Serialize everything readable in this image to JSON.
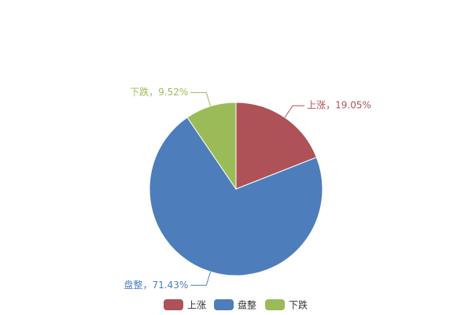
{
  "chart_data": {
    "type": "pie",
    "categories": [
      "上涨",
      "盘整",
      "下跌"
    ],
    "values": [
      19.05,
      71.43,
      9.52
    ],
    "value_labels": [
      "上涨，19.05%",
      "盘整，71.43%",
      "下跌，9.52%"
    ],
    "colors": [
      "#ae5257",
      "#4d7ebb",
      "#9bbb59"
    ],
    "legend": "bottom"
  }
}
